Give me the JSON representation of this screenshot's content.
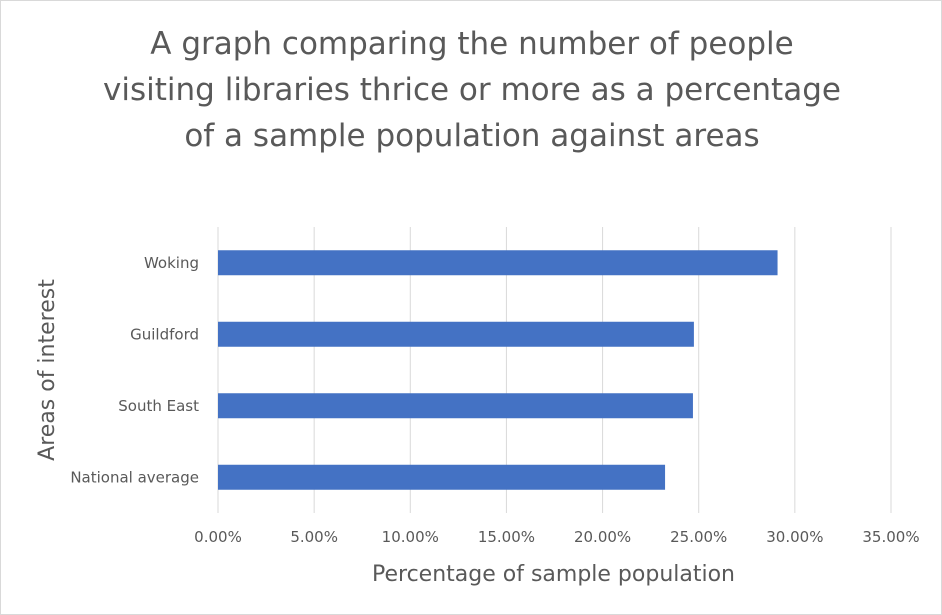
{
  "chart_data": {
    "type": "bar",
    "orientation": "horizontal",
    "title": "A graph comparing the number of people visiting libraries thrice or more as a percentage of a sample population against areas",
    "xlabel": "Percentage of sample population",
    "ylabel": "Areas of interest",
    "categories": [
      "Woking",
      "Guildford",
      "South East",
      "National average"
    ],
    "values": [
      0.291,
      0.2475,
      0.247,
      0.2325
    ],
    "xlim": [
      0,
      0.35
    ],
    "x_ticks": [
      0,
      0.05,
      0.1,
      0.15,
      0.2,
      0.25,
      0.3,
      0.35
    ],
    "x_tick_labels": [
      "0.00%",
      "5.00%",
      "10.00%",
      "15.00%",
      "20.00%",
      "25.00%",
      "30.00%",
      "35.00%"
    ],
    "grid": "vertical",
    "legend": "none",
    "bar_color": "#4472c4",
    "grid_color": "#d9d9d9"
  }
}
